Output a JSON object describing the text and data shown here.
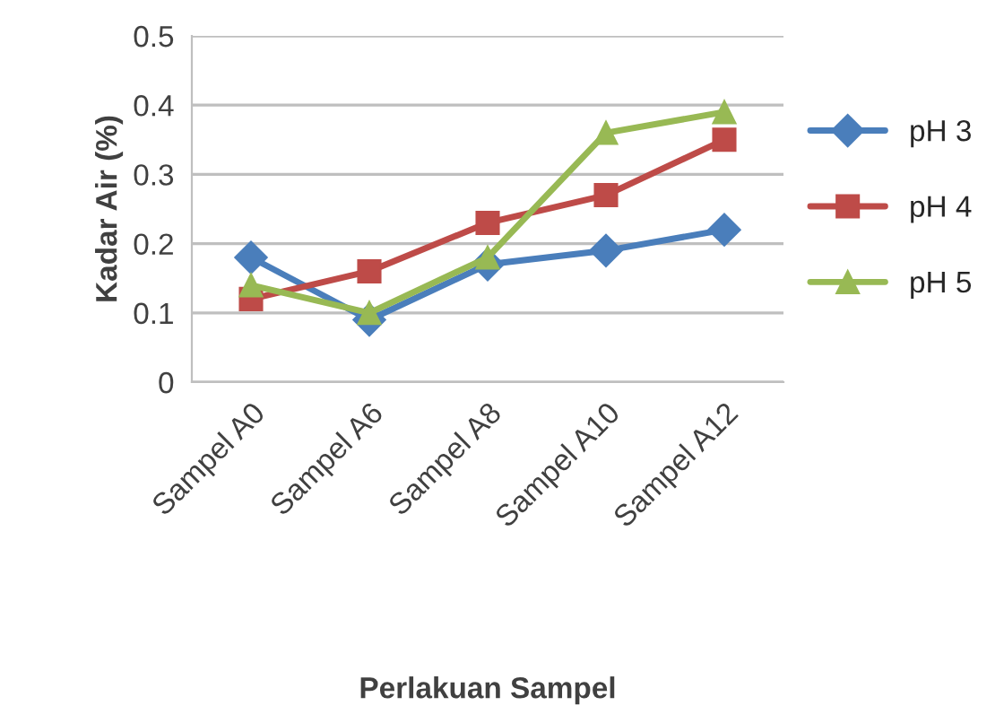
{
  "chart_data": {
    "type": "line",
    "xlabel": "Perlakuan Sampel",
    "ylabel": "Kadar Air (%)",
    "categories": [
      "Sampel A0",
      "Sampel A6",
      "Sampel A8",
      "Sampel A10",
      "Sampel A12"
    ],
    "series": [
      {
        "name": "pH 3",
        "color": "#4a7ebb",
        "marker": "diamond",
        "values": [
          0.18,
          0.09,
          0.17,
          0.19,
          0.22
        ]
      },
      {
        "name": "pH 4",
        "color": "#be4b48",
        "marker": "square",
        "values": [
          0.12,
          0.16,
          0.23,
          0.27,
          0.35
        ]
      },
      {
        "name": "pH 5",
        "color": "#98b954",
        "marker": "triangle",
        "values": [
          0.14,
          0.1,
          0.18,
          0.36,
          0.39
        ]
      }
    ],
    "ylim": [
      0,
      0.5
    ],
    "yticks": [
      {
        "value": 0,
        "label": "0"
      },
      0.1,
      0.2,
      0.3,
      0.4,
      0.5
    ],
    "grid": "y",
    "legend": "right",
    "line_style": "solid"
  }
}
